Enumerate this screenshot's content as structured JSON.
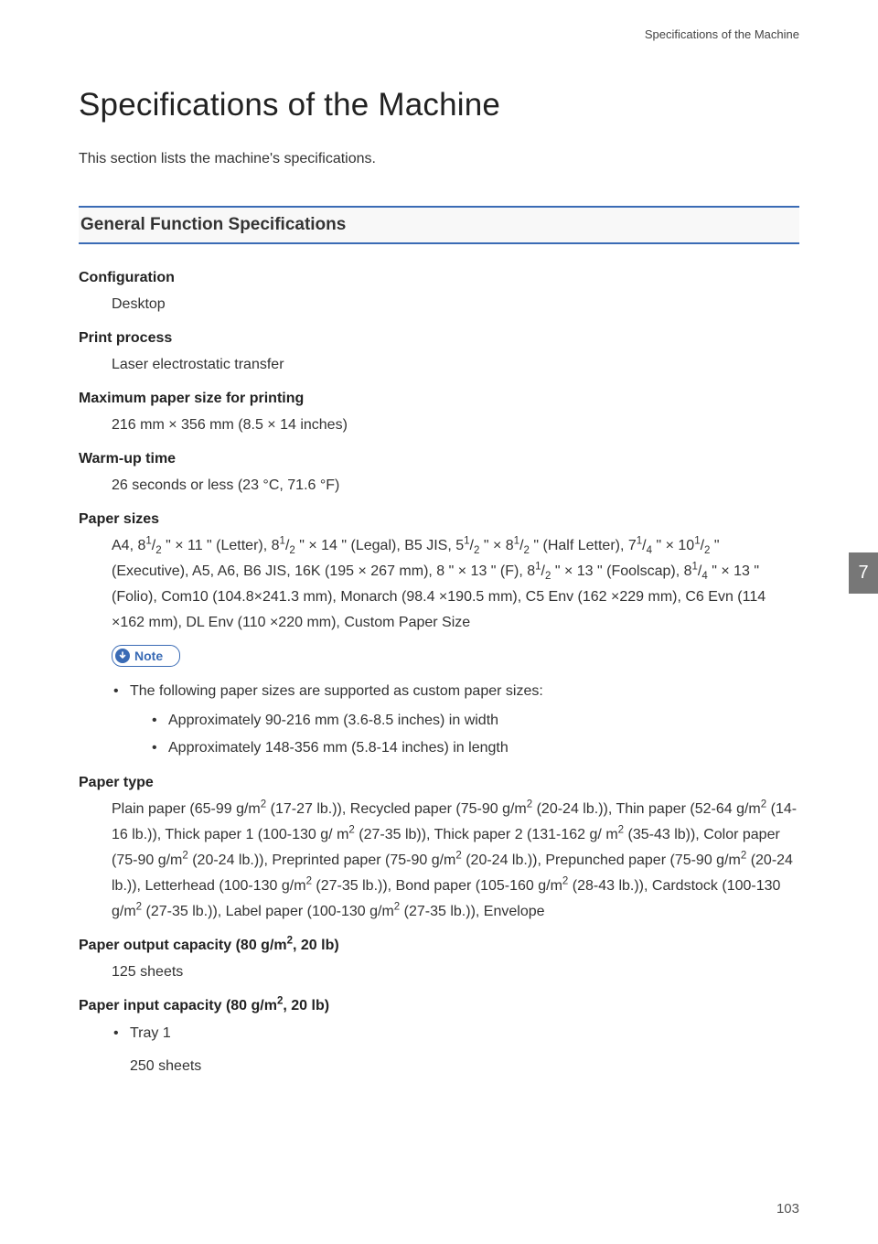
{
  "header": {
    "running": "Specifications of the Machine"
  },
  "title": "Specifications of the Machine",
  "intro": "This section lists the machine's specifications.",
  "section": {
    "title": "General Function Specifications"
  },
  "specs": {
    "configuration": {
      "term": "Configuration",
      "value": "Desktop"
    },
    "print_process": {
      "term": "Print process",
      "value": "Laser electrostatic transfer"
    },
    "max_paper_size": {
      "term": "Maximum paper size for printing",
      "value": "216 mm × 356 mm (8.5 × 14 inches)"
    },
    "warmup": {
      "term": "Warm-up time",
      "value": "26 seconds or less (23 °C, 71.6 °F)"
    },
    "paper_sizes": {
      "term": "Paper sizes",
      "value_html": "A4, 8<sup>1</sup>/<sub>2</sub> \" × 11 \" (Letter), 8<sup>1</sup>/<sub>2</sub> \" × 14 \" (Legal), B5 JIS, 5<sup>1</sup>/<sub>2</sub> \" × 8<sup>1</sup>/<sub>2</sub> \" (Half Letter), 7<sup>1</sup>/<sub>4</sub> \" × 10<sup>1</sup>/<sub>2</sub> \" (Executive), A5, A6, B6 JIS, 16K (195 × 267 mm), 8 \" × 13 \" (F), 8<sup>1</sup>/<sub>2</sub> \" × 13 \" (Foolscap), 8<sup>1</sup>/<sub>4</sub> \" × 13 \" (Folio), Com10 (104.8×241.3 mm), Monarch (98.4 ×190.5 mm), C5 Env (162 ×229 mm), C6 Evn (114 ×162 mm), DL Env (110 ×220 mm), Custom Paper Size"
    },
    "note": {
      "label": "Note",
      "line1": "The following paper sizes are supported as custom paper sizes:",
      "sub1": "Approximately 90-216 mm (3.6-8.5 inches) in width",
      "sub2": "Approximately 148-356 mm (5.8-14 inches) in length"
    },
    "paper_type": {
      "term": "Paper type",
      "value_html": "Plain paper (65-99 g/m<sup>2</sup> (17-27 lb.)), Recycled paper (75-90 g/m<sup>2</sup> (20-24 lb.)), Thin paper (52-64 g/m<sup>2</sup> (14-16 lb.)), Thick paper 1 (100-130 g/ m<sup>2</sup> (27-35 lb)), Thick paper 2 (131-162 g/ m<sup>2</sup> (35-43 lb)), Color paper (75-90 g/m<sup>2</sup> (20-24 lb.)), Preprinted paper (75-90 g/m<sup>2</sup> (20-24 lb.)), Prepunched paper (75-90 g/m<sup>2</sup> (20-24 lb.)), Letterhead (100-130 g/m<sup>2</sup> (27-35 lb.)), Bond paper (105-160 g/m<sup>2</sup> (28-43 lb.)), Cardstock (100-130 g/m<sup>2</sup> (27-35 lb.)), Label paper (100-130 g/m<sup>2</sup> (27-35 lb.)), Envelope"
    },
    "output_capacity": {
      "term_html": "Paper output capacity (80 g/m<sup>2</sup>, 20 lb)",
      "value": "125 sheets"
    },
    "input_capacity": {
      "term_html": "Paper input capacity (80 g/m<sup>2</sup>, 20 lb)",
      "tray_label": "Tray 1",
      "tray_value": "250 sheets"
    }
  },
  "side_tab": "7",
  "page_number": "103",
  "colors": {
    "accent": "#3a6bb5",
    "tab": "#777777"
  }
}
